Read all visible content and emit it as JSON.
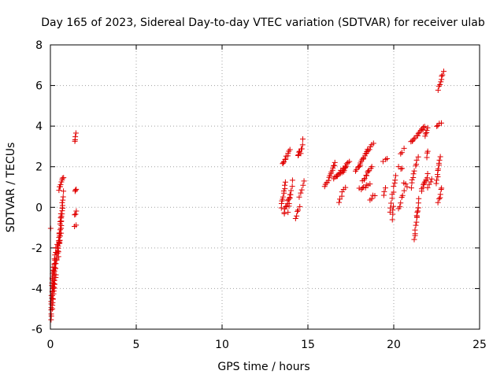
{
  "chart_data": {
    "type": "scatter",
    "title": "Day 165 of 2023, Sidereal Day-to-day VTEC variation (SDTVAR) for receiver ulab",
    "xlabel": "GPS time / hours",
    "ylabel": "SDTVAR / TECUs",
    "xlim": [
      0,
      25
    ],
    "ylim": [
      -6,
      8
    ],
    "xticks": [
      "0",
      "5",
      "10",
      "15",
      "20",
      "25"
    ],
    "yticks": [
      "-6",
      "-4",
      "-2",
      "0",
      "2",
      "4",
      "6",
      "8"
    ],
    "grid": true,
    "marker": "+",
    "color": "#e00000",
    "series": [
      {
        "segments": [
          [
            0.0,
            -1.05,
            0.05,
            -1.0,
            0
          ],
          [
            0.02,
            -5.5,
            0.15,
            -3.0,
            18
          ],
          [
            0.1,
            -5.0,
            0.22,
            -2.6,
            16
          ],
          [
            0.18,
            -4.5,
            0.3,
            -2.0,
            14
          ],
          [
            0.25,
            -4.0,
            0.4,
            -1.8,
            10
          ],
          [
            0.35,
            -2.6,
            0.55,
            -1.3,
            10
          ],
          [
            0.45,
            -2.4,
            0.62,
            -0.3,
            12
          ],
          [
            0.55,
            -1.8,
            0.72,
            0.3,
            12
          ],
          [
            0.48,
            0.9,
            0.75,
            1.5,
            8
          ],
          [
            0.6,
            -1.0,
            0.75,
            0.8,
            8
          ],
          [
            1.4,
            3.2,
            1.5,
            3.6,
            4
          ],
          [
            1.42,
            0.75,
            1.5,
            0.9,
            3
          ],
          [
            1.4,
            -0.4,
            1.48,
            -0.2,
            3
          ],
          [
            1.4,
            -0.95,
            1.48,
            -0.85,
            2
          ],
          [
            13.5,
            2.1,
            13.95,
            2.8,
            10
          ],
          [
            13.45,
            0.0,
            13.7,
            1.2,
            10
          ],
          [
            13.6,
            -0.3,
            13.95,
            0.6,
            10
          ],
          [
            13.85,
            -0.2,
            14.1,
            1.3,
            8
          ],
          [
            14.3,
            -0.5,
            14.5,
            0.0,
            5
          ],
          [
            14.4,
            2.5,
            14.6,
            2.9,
            5
          ],
          [
            14.6,
            2.6,
            14.7,
            3.3,
            4
          ],
          [
            14.5,
            0.5,
            14.8,
            1.3,
            5
          ],
          [
            16.0,
            1.0,
            16.6,
            2.2,
            14
          ],
          [
            16.5,
            1.4,
            17.2,
            2.0,
            14
          ],
          [
            16.8,
            0.3,
            16.95,
            0.5,
            3
          ],
          [
            17.0,
            0.8,
            17.2,
            1.0,
            3
          ],
          [
            17.0,
            1.7,
            17.4,
            2.3,
            8
          ],
          [
            17.8,
            1.8,
            18.5,
            2.8,
            16
          ],
          [
            18.2,
            1.3,
            18.7,
            2.0,
            10
          ],
          [
            18.0,
            0.9,
            18.6,
            1.1,
            8
          ],
          [
            18.5,
            2.8,
            18.8,
            3.1,
            5
          ],
          [
            18.6,
            0.4,
            18.9,
            0.6,
            4
          ],
          [
            19.4,
            2.3,
            19.6,
            2.4,
            3
          ],
          [
            19.4,
            0.6,
            19.5,
            1.0,
            3
          ],
          [
            19.8,
            -0.2,
            20.1,
            1.6,
            10
          ],
          [
            19.9,
            -0.6,
            20.0,
            0.1,
            4
          ],
          [
            20.3,
            2.0,
            20.5,
            1.9,
            3
          ],
          [
            20.4,
            2.6,
            20.6,
            2.9,
            3
          ],
          [
            20.3,
            -0.1,
            20.6,
            0.8,
            6
          ],
          [
            20.6,
            1.2,
            20.8,
            1.0,
            3
          ],
          [
            21.0,
            3.2,
            21.8,
            4.0,
            14
          ],
          [
            21.8,
            3.5,
            22.0,
            3.9,
            5
          ],
          [
            21.0,
            1.0,
            21.4,
            2.5,
            10
          ],
          [
            21.2,
            -1.6,
            21.4,
            0.0,
            10
          ],
          [
            21.35,
            -0.5,
            21.45,
            0.4,
            5
          ],
          [
            21.6,
            0.8,
            22.0,
            1.6,
            10
          ],
          [
            22.0,
            1.0,
            22.2,
            1.4,
            4
          ],
          [
            21.9,
            2.5,
            22.0,
            2.8,
            3
          ],
          [
            22.5,
            1.2,
            22.7,
            2.5,
            10
          ],
          [
            22.6,
            0.2,
            22.8,
            1.0,
            6
          ],
          [
            22.5,
            4.0,
            22.75,
            4.2,
            4
          ],
          [
            22.6,
            5.8,
            22.9,
            6.7,
            8
          ]
        ]
      }
    ]
  }
}
